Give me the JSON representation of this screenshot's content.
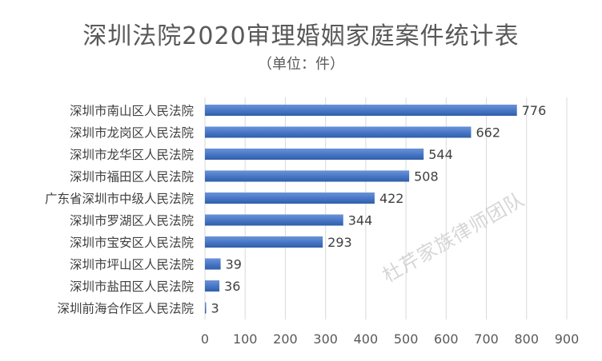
{
  "title": "深圳法院2020审理婚姻家庭案件统计表",
  "subtitle": "（单位：件）",
  "watermark": "杜芹家族律师团队",
  "chart_data": {
    "type": "bar",
    "orientation": "horizontal",
    "categories": [
      "深圳市南山区人民法院",
      "深圳市龙岗区人民法院",
      "深圳市龙华区人民法院",
      "深圳市福田区人民法院",
      "广东省深圳市中级人民法院",
      "深圳市罗湖区人民法院",
      "深圳市宝安区人民法院",
      "深圳市坪山区人民法院",
      "深圳市盐田区人民法院",
      "深圳前海合作区人民法院"
    ],
    "values": [
      776,
      662,
      544,
      508,
      422,
      344,
      293,
      39,
      36,
      3
    ],
    "xlim": [
      0,
      900
    ],
    "xticks": [
      0,
      100,
      200,
      300,
      400,
      500,
      600,
      700,
      800,
      900
    ],
    "grid": "vertical",
    "bar_color": "#4472c4",
    "data_labels": true
  }
}
